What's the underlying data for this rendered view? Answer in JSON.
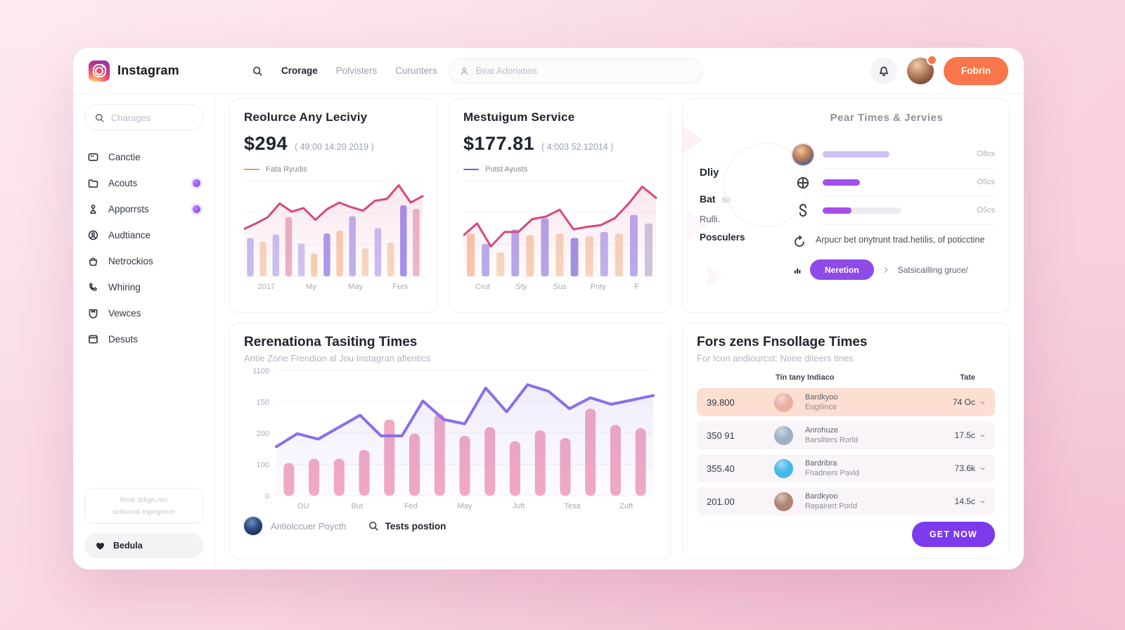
{
  "brand": {
    "name": "Instagram"
  },
  "colors": {
    "accent_orange": "#f8764a",
    "accent_purple": "#7c3aed",
    "highlight_row": "#fcded3"
  },
  "header": {
    "nav": [
      {
        "label": "Crorage",
        "active": true
      },
      {
        "label": "Polvisters",
        "active": false
      },
      {
        "label": "Curunters",
        "active": false
      }
    ],
    "search_placeholder": "Beat Adonatios",
    "signin_label": "Fobrin"
  },
  "sidebar": {
    "search_placeholder": "Charages",
    "items": [
      {
        "label": "Canctie",
        "icon": "card-icon",
        "badge": false
      },
      {
        "label": "Acouts",
        "icon": "folder-icon",
        "badge": true
      },
      {
        "label": "Apporrsts",
        "icon": "podium-icon",
        "badge": true
      },
      {
        "label": "Audtiance",
        "icon": "user-circle-icon",
        "badge": false
      },
      {
        "label": "Netrockios",
        "icon": "bag-icon",
        "badge": false
      },
      {
        "label": "Whiring",
        "icon": "phone-icon",
        "badge": false
      },
      {
        "label": "Vewces",
        "icon": "pocket-icon",
        "badge": false
      },
      {
        "label": "Desuts",
        "icon": "window-icon",
        "badge": false
      }
    ],
    "note_line1": "Real ddign,nm",
    "note_line2": "uctiumal Inpogenre",
    "favorite_label": "Bedula"
  },
  "cards": {
    "activity": {
      "title": "Reolurce Any Leciviy",
      "value": "$294",
      "period": "( 49:00 14:20 2019 )",
      "legend": "Fata Ryudis",
      "legend_color": "#f0946a"
    },
    "service": {
      "title": "Mestuigum Service",
      "value": "$177.81",
      "period": "( 4:003 52.12014 )",
      "legend": "Putst Ayusts",
      "legend_color": "#7c5ce0"
    },
    "peak": {
      "title": "Pear Times & Jervies",
      "side": {
        "label1": "Dliy",
        "label2": "Bat",
        "value2": "60",
        "label3": "Rulli.",
        "label4": "Posculers"
      },
      "rows": [
        {
          "icon": "avatar",
          "pct": 48,
          "fill": "#cfc0f4",
          "track_pct": 0,
          "value": "O8cs"
        },
        {
          "icon": "globe-icon",
          "pct": 27,
          "fill": "#a44ff0",
          "track_pct": 0,
          "value": "O5cs"
        },
        {
          "icon": "hook-icon",
          "pct": 21,
          "fill": "#a44ff0",
          "track_pct": 57,
          "value": "O5cs"
        }
      ],
      "note": "Arpucr bet onytrunt trad.hetilis, of poticctine",
      "button_label": "Neretion",
      "link_label": "Satsicailling gruce/"
    },
    "tasting": {
      "title": "Rerenationa Tasiting Times",
      "subtitle": "Antie Zone Frendion al Jou Instagran aflentics",
      "footer_user": "Antiolccuer Poycth",
      "footer_action": "Tests postion"
    },
    "follow": {
      "title": "Fors zens Fnsollage Times",
      "subtitle": "For Icon andiourcst: None dileers tines",
      "col_user": "Tin tany Indiaco",
      "col_rate": "Tate",
      "rows": [
        {
          "time": "39.800",
          "name": "Bardkyoo",
          "sub": "Eugtiince",
          "rate": "74 Oc",
          "avatar": "#e9b0a2",
          "highlight": true
        },
        {
          "time": "350 91",
          "name": "Anrohuze",
          "sub": "Barsliters Rorld",
          "rate": "17.5c",
          "avatar": "#9fb0c4",
          "highlight": false
        },
        {
          "time": "355.40",
          "name": "Bardribra",
          "sub": "Fnadners Pavld",
          "rate": "73.6k",
          "avatar": "#45b7e8",
          "highlight": false
        },
        {
          "time": "201.00",
          "name": "Bardkyoo",
          "sub": "Repairert Porld",
          "rate": "14.5c",
          "avatar": "#b08573",
          "highlight": false
        }
      ],
      "cta_label": "GET NOW"
    }
  },
  "chart_data": [
    {
      "type": "bar",
      "subtype": "bar-line-combo",
      "title": "Reolurce Any Leciviy",
      "legend": "Fata Ryudis",
      "x_ticks": [
        "2017",
        "My",
        "May",
        "Fers"
      ],
      "ymax": 105,
      "bar_values": [
        42,
        38,
        46,
        65,
        36,
        25,
        47,
        50,
        66,
        31,
        53,
        37,
        78,
        74
      ],
      "bar_colors": [
        "#c6bef2",
        "#f9d7bd",
        "#cac2f3",
        "#ecb3c6",
        "#cdc6f3",
        "#f8d2b4",
        "#a89df0",
        "#f8cfae",
        "#bdb3f0",
        "#f8d8c0",
        "#c9c0f1",
        "#f8d8c0",
        "#a193ee",
        "#ecb9c9"
      ],
      "line_values": [
        52,
        58,
        65,
        80,
        71,
        75,
        62,
        74,
        81,
        76,
        72,
        83,
        85,
        100,
        81,
        88
      ],
      "line_color": "#d6487e"
    },
    {
      "type": "bar",
      "subtype": "bar-line-combo",
      "title": "Mestuigum Service",
      "legend": "Putst Ayusts",
      "x_ticks": [
        "Crut",
        "Sty",
        "Sus",
        "Pnty",
        "F"
      ],
      "ymax": 112,
      "bar_values": [
        50,
        38,
        28,
        55,
        48,
        68,
        50,
        45,
        47,
        52,
        50,
        72,
        62
      ],
      "bar_colors": [
        "#f7c9a9",
        "#b9aeee",
        "#f9d9c1",
        "#b5a9ed",
        "#f8d2b4",
        "#b2a6ec",
        "#f8d6bc",
        "#9e94e6",
        "#f8d6bc",
        "#bdb3ef",
        "#f8d6bc",
        "#b7acee",
        "#cdc9d9"
      ],
      "line_values": [
        48,
        62,
        35,
        52,
        52,
        67,
        70,
        78,
        55,
        58,
        60,
        68,
        85,
        105,
        92
      ],
      "line_color": "#d6487e"
    },
    {
      "type": "bar",
      "subtype": "bar-line-combo",
      "title": "Rerenationa Tasiting Times",
      "y_ticks": [
        "1100",
        "150",
        "200",
        "100",
        "0"
      ],
      "x_ticks": [
        "OU",
        "But",
        "Fed",
        "May",
        "Juft",
        "Tesa",
        "Zuft"
      ],
      "ymax": 115,
      "bar_values": [
        30,
        34,
        34,
        42,
        70,
        57,
        75,
        55,
        63,
        50,
        60,
        53,
        80,
        65,
        62
      ],
      "bar_colors": [
        "#f2a9c2"
      ],
      "line_values": [
        45,
        57,
        52,
        63,
        74,
        55,
        55,
        87,
        70,
        66,
        99,
        77,
        102,
        96,
        80,
        90,
        84,
        88,
        92
      ],
      "line_color": "#8a6fe8"
    }
  ]
}
